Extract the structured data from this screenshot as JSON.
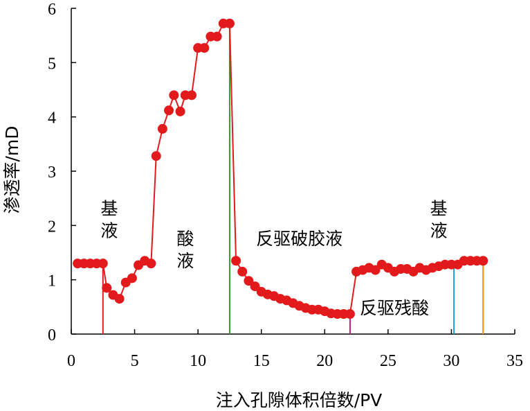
{
  "chart_data": {
    "type": "scatter",
    "title": "",
    "xlabel": "注入孔隙体积倍数/PV",
    "ylabel": "渗透率/mD",
    "xlim": [
      0,
      35
    ],
    "ylim": [
      0,
      6
    ],
    "xticks": [
      "0",
      "5",
      "10",
      "15",
      "20",
      "25",
      "30",
      "35"
    ],
    "yticks": [
      "0",
      "1",
      "2",
      "3",
      "4",
      "5",
      "6"
    ],
    "grid": false,
    "legend": "none",
    "marker_color": "#e31a1c",
    "series": [
      {
        "points": [
          [
            0.5,
            1.3
          ],
          [
            1.0,
            1.3
          ],
          [
            1.5,
            1.3
          ],
          [
            2.0,
            1.3
          ],
          [
            2.5,
            1.3
          ],
          [
            2.8,
            0.85
          ],
          [
            3.3,
            0.72
          ],
          [
            3.8,
            0.65
          ],
          [
            4.3,
            0.95
          ],
          [
            4.8,
            1.03
          ],
          [
            5.3,
            1.27
          ],
          [
            5.8,
            1.35
          ],
          [
            6.3,
            1.3
          ],
          [
            6.7,
            3.28
          ],
          [
            7.2,
            3.78
          ],
          [
            7.7,
            4.12
          ],
          [
            8.1,
            4.4
          ],
          [
            8.6,
            4.1
          ],
          [
            9.0,
            4.4
          ],
          [
            9.5,
            4.4
          ],
          [
            10.0,
            5.27
          ],
          [
            10.5,
            5.27
          ],
          [
            11.0,
            5.48
          ],
          [
            11.5,
            5.48
          ],
          [
            12.0,
            5.72
          ],
          [
            12.5,
            5.72
          ],
          [
            13.0,
            1.35
          ],
          [
            13.5,
            1.15
          ],
          [
            14.0,
            0.98
          ],
          [
            14.5,
            0.88
          ],
          [
            15.0,
            0.78
          ],
          [
            15.5,
            0.73
          ],
          [
            16.0,
            0.7
          ],
          [
            16.5,
            0.65
          ],
          [
            17.0,
            0.62
          ],
          [
            17.5,
            0.57
          ],
          [
            18.0,
            0.52
          ],
          [
            18.5,
            0.48
          ],
          [
            19.0,
            0.45
          ],
          [
            19.5,
            0.45
          ],
          [
            20.0,
            0.42
          ],
          [
            20.5,
            0.38
          ],
          [
            21.0,
            0.37
          ],
          [
            21.5,
            0.37
          ],
          [
            22.0,
            0.37
          ],
          [
            22.5,
            1.15
          ],
          [
            23.0,
            1.18
          ],
          [
            23.5,
            1.22
          ],
          [
            24.0,
            1.18
          ],
          [
            24.5,
            1.28
          ],
          [
            25.0,
            1.22
          ],
          [
            25.5,
            1.15
          ],
          [
            26.0,
            1.2
          ],
          [
            26.5,
            1.2
          ],
          [
            27.0,
            1.15
          ],
          [
            27.5,
            1.22
          ],
          [
            28.0,
            1.18
          ],
          [
            28.5,
            1.22
          ],
          [
            29.0,
            1.25
          ],
          [
            29.5,
            1.28
          ],
          [
            30.0,
            1.28
          ],
          [
            30.5,
            1.28
          ],
          [
            31.0,
            1.35
          ],
          [
            31.5,
            1.35
          ],
          [
            32.0,
            1.35
          ],
          [
            32.5,
            1.35
          ]
        ]
      }
    ],
    "vertical_lines": [
      {
        "x": 2.5,
        "color": "#e31a1c"
      },
      {
        "x": 12.5,
        "color": "#2ca02c"
      },
      {
        "x": 22.0,
        "color": "#c51b8a"
      },
      {
        "x": 30.2,
        "color": "#1f9be0"
      },
      {
        "x": 32.5,
        "color": "#ff8c00"
      }
    ],
    "annotations": [
      {
        "lines": [
          "基",
          "液"
        ],
        "x": 3.0,
        "y": 2.2
      },
      {
        "lines": [
          "酸",
          "液"
        ],
        "x": 9.0,
        "y": 1.65
      },
      {
        "lines": [
          "反驱破胶液"
        ],
        "x": 18.0,
        "y": 1.65
      },
      {
        "lines": [
          "反驱残酸"
        ],
        "x": 25.5,
        "y": 0.37
      },
      {
        "lines": [
          "基",
          "液"
        ],
        "x": 29.0,
        "y": 2.2
      }
    ]
  }
}
